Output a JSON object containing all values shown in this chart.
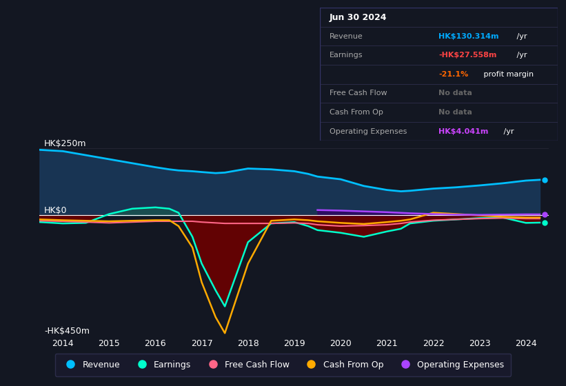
{
  "bg_color": "#131722",
  "plot_bg_color": "#131722",
  "years": [
    2013.5,
    2014.0,
    2014.5,
    2015.0,
    2015.5,
    2016.0,
    2016.3,
    2016.5,
    2016.8,
    2017.0,
    2017.3,
    2017.5,
    2018.0,
    2018.5,
    2019.0,
    2019.3,
    2019.5,
    2020.0,
    2020.5,
    2021.0,
    2021.3,
    2021.5,
    2022.0,
    2022.5,
    2023.0,
    2023.5,
    2024.0,
    2024.3
  ],
  "revenue": [
    245,
    240,
    225,
    210,
    195,
    180,
    172,
    168,
    165,
    162,
    158,
    160,
    175,
    172,
    165,
    155,
    145,
    135,
    110,
    95,
    90,
    92,
    100,
    105,
    112,
    120,
    130,
    133
  ],
  "earnings": [
    -25,
    -30,
    -28,
    5,
    25,
    30,
    25,
    10,
    -80,
    -180,
    -280,
    -340,
    -100,
    -30,
    -25,
    -40,
    -55,
    -65,
    -80,
    -60,
    -50,
    -30,
    -20,
    -15,
    -10,
    -8,
    -28,
    -27
  ],
  "free_cash_flow": [
    -20,
    -22,
    -25,
    -28,
    -25,
    -22,
    -22,
    -22,
    -22,
    -25,
    -28,
    -30,
    -30,
    -30,
    -28,
    -30,
    -35,
    -40,
    -38,
    -35,
    -30,
    -25,
    -18,
    -15,
    -12,
    -10,
    -12,
    -12
  ],
  "cash_from_op": [
    -15,
    -18,
    -20,
    -22,
    -20,
    -18,
    -18,
    -40,
    -120,
    -250,
    -380,
    -440,
    -180,
    -20,
    -15,
    -18,
    -22,
    -28,
    -32,
    -25,
    -20,
    -15,
    10,
    5,
    0,
    -5,
    -8,
    -8
  ],
  "op_expenses_x": [
    2019.5,
    2020.0,
    2020.5,
    2021.0,
    2021.5,
    2022.0,
    2022.5,
    2023.0,
    2023.5,
    2024.0,
    2024.3
  ],
  "op_expenses_y": [
    20,
    18,
    15,
    12,
    8,
    5,
    3,
    2,
    3,
    4,
    4
  ],
  "ylim": [
    -450,
    300
  ],
  "revenue_line_color": "#00bfff",
  "revenue_fill_color": "#1a3a5c",
  "earnings_line_color": "#00ffcc",
  "earnings_fill_neg_color": "#6b0000",
  "earnings_fill_pos_color": "#1a5050",
  "free_cash_flow_color": "#ff6688",
  "cash_from_op_color": "#ffaa00",
  "op_expenses_color": "#aa44ff",
  "op_expenses_fill_color": "#330066",
  "legend_items": [
    "Revenue",
    "Earnings",
    "Free Cash Flow",
    "Cash From Op",
    "Operating Expenses"
  ],
  "legend_colors": [
    "#00bfff",
    "#00ffcc",
    "#ff6688",
    "#ffaa00",
    "#aa44ff"
  ],
  "xmin": 2013.5,
  "xmax": 2024.5,
  "grid_color": "#2a2a3a",
  "zero_line_color": "#ffffff",
  "xtick_years": [
    2014,
    2015,
    2016,
    2017,
    2018,
    2019,
    2020,
    2021,
    2022,
    2023,
    2024
  ],
  "table_rows": [
    {
      "label": "Jun 30 2024",
      "is_header": true
    },
    {
      "label": "Revenue",
      "value": "HK$130.314m",
      "suffix": " /yr",
      "value_color": "#00aaff",
      "suffix_color": "#ffffff"
    },
    {
      "label": "Earnings",
      "value": "-HK$27.558m",
      "suffix": " /yr",
      "value_color": "#ff4444",
      "suffix_color": "#ffffff"
    },
    {
      "label": "",
      "value": "-21.1%",
      "suffix": " profit margin",
      "value_color": "#ff6600",
      "suffix_color": "#ffffff"
    },
    {
      "label": "Free Cash Flow",
      "value": "No data",
      "suffix": "",
      "value_color": "#666666",
      "suffix_color": "#ffffff"
    },
    {
      "label": "Cash From Op",
      "value": "No data",
      "suffix": "",
      "value_color": "#666666",
      "suffix_color": "#ffffff"
    },
    {
      "label": "Operating Expenses",
      "value": "HK$4.041m",
      "suffix": " /yr",
      "value_color": "#cc44ff",
      "suffix_color": "#ffffff"
    }
  ]
}
